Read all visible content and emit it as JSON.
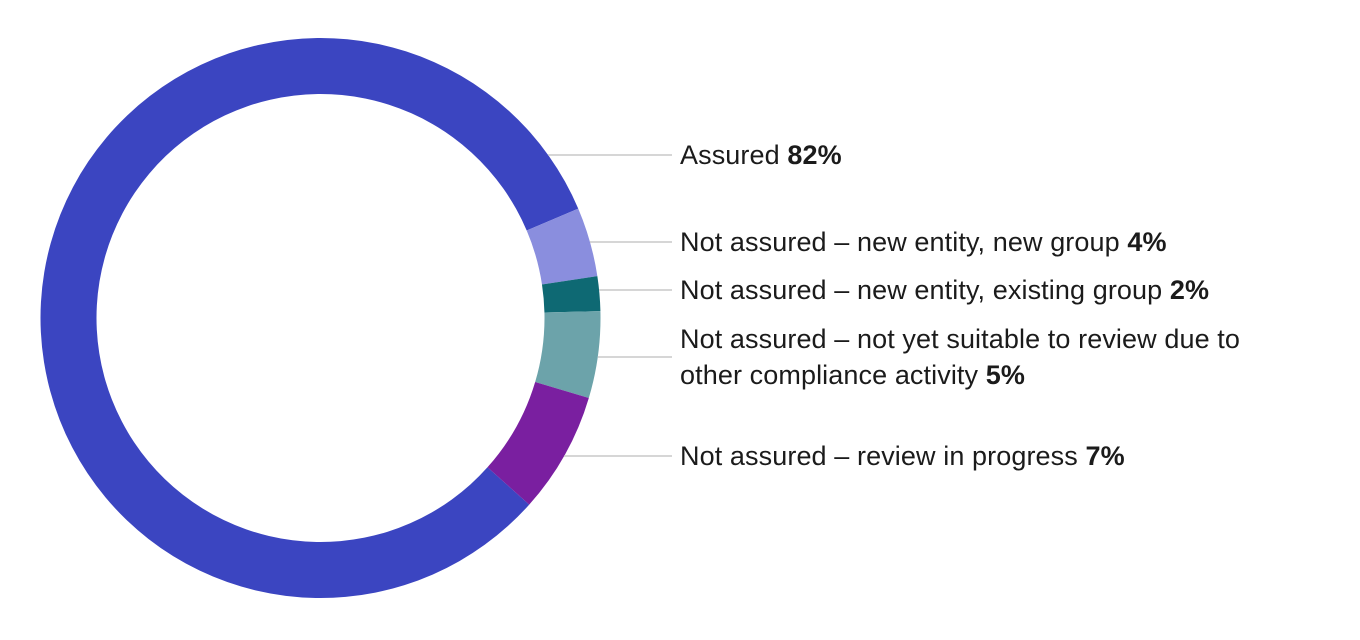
{
  "chart_data": {
    "type": "pie",
    "variant": "donut",
    "title": "",
    "legend_position": "right",
    "background": "#ffffff",
    "text_color": "#1b1b1b",
    "leader_line_color": "#c8c8c8",
    "segments": [
      {
        "label": "Assured",
        "value": 82,
        "value_label": "82%",
        "color": "#3B45C1"
      },
      {
        "label": "Not assured – new entity, new group",
        "value": 4,
        "value_label": "4%",
        "color": "#8A8EDE"
      },
      {
        "label": "Not assured – new entity, existing group",
        "value": 2,
        "value_label": "2%",
        "color": "#0E6973"
      },
      {
        "label": "Not assured – not yet suitable to review due to other compliance activity",
        "value": 5,
        "value_label": "5%",
        "color": "#6CA3AA"
      },
      {
        "label": "Not assured – review in progress",
        "value": 7,
        "value_label": "7%",
        "color": "#7A1FA0"
      }
    ]
  }
}
